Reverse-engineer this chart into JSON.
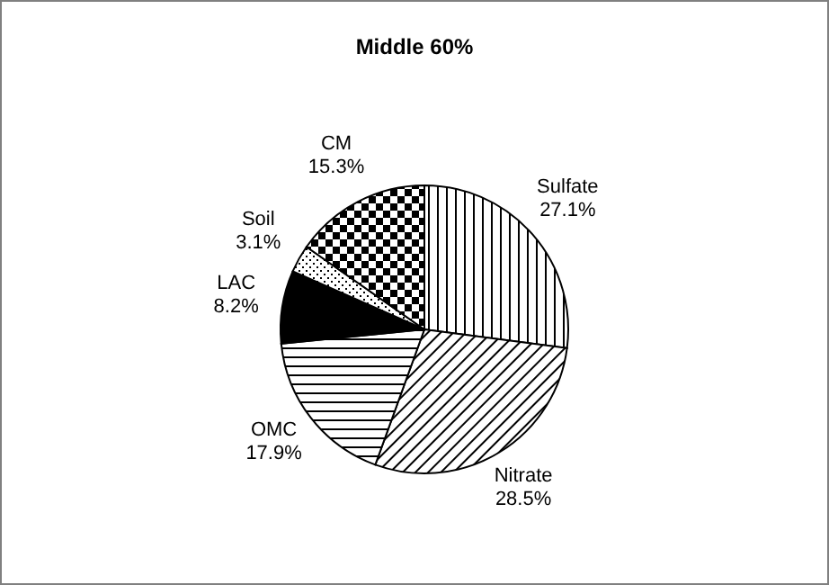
{
  "chart_data": {
    "type": "pie",
    "title": "Middle 60%",
    "categories": [
      "Sulfate",
      "Nitrate",
      "OMC",
      "LAC",
      "Soil",
      "CM"
    ],
    "values": [
      27.1,
      28.5,
      17.9,
      8.2,
      3.1,
      15.3
    ],
    "value_labels": [
      "27.1%",
      "28.5%",
      "17.9%",
      "8.2%",
      "3.1%",
      "15.3%"
    ],
    "colors": [
      "#000000",
      "#000000",
      "#000000",
      "#000000",
      "#000000",
      "#000000"
    ]
  }
}
